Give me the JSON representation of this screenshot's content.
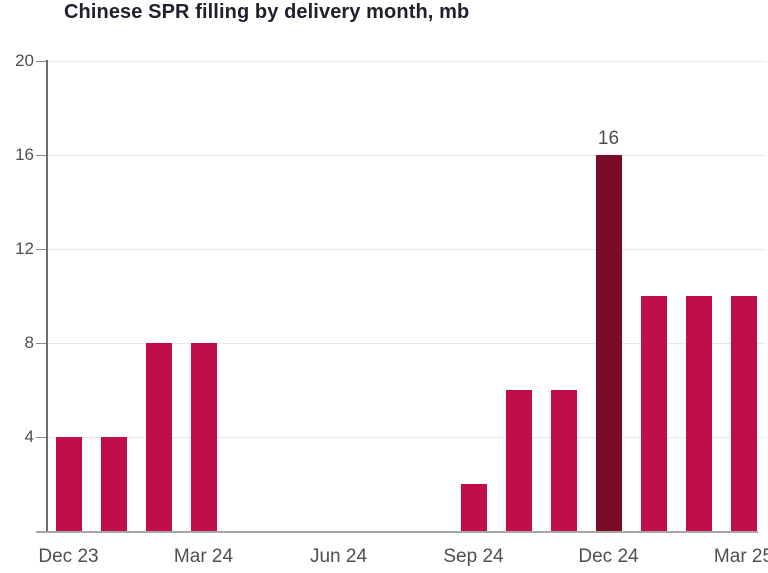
{
  "chart_data": {
    "type": "bar",
    "title": "Chinese SPR filling by delivery month, mb",
    "categories": [
      "Dec 23",
      "Jan 24",
      "Feb 24",
      "Mar 24",
      "Apr 24",
      "May 24",
      "Jun 24",
      "Jul 24",
      "Aug 24",
      "Sep 24",
      "Oct 24",
      "Nov 24",
      "Dec 24",
      "Jan 25",
      "Feb 25",
      "Mar 25"
    ],
    "values": [
      4,
      4,
      8,
      8,
      0,
      0,
      0,
      0,
      0,
      2,
      6,
      6,
      16,
      10,
      10,
      10
    ],
    "x_tick_labels": [
      "Dec 23",
      "Mar 24",
      "Jun 24",
      "Sep 24",
      "Dec 24",
      "Mar 25"
    ],
    "x_tick_month_indices": [
      0,
      3,
      6,
      9,
      12,
      15
    ],
    "y_ticks": [
      4,
      8,
      12,
      16,
      20
    ],
    "ylim": [
      0,
      20
    ],
    "xlabel": "",
    "ylabel": "",
    "grid": "horizontal",
    "legend": "none",
    "bar_color": "#c00e4a",
    "highlight_color": "#7c0b27",
    "highlight_index": 12,
    "data_labels": [
      {
        "index": 12,
        "text": "16"
      }
    ],
    "axis_label_color": "#4f4f4f",
    "title_color": "#20202f",
    "gridline_color": "#e9e9e9"
  }
}
